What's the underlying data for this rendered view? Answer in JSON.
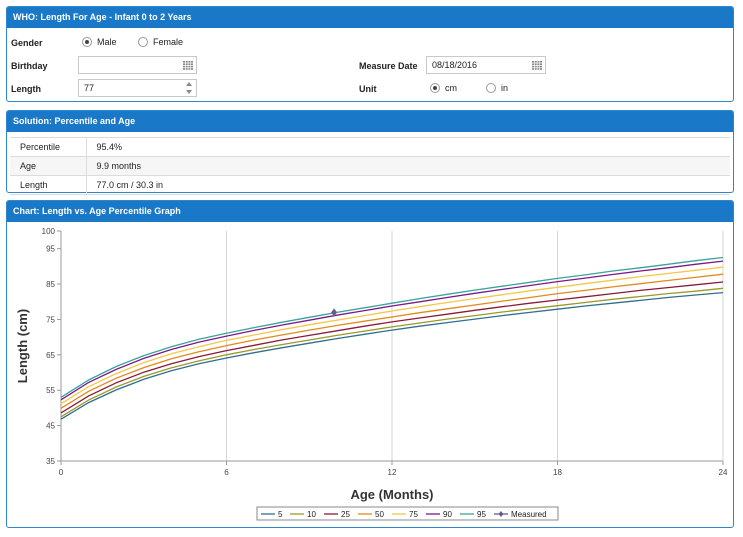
{
  "input_panel": {
    "title": "WHO: Length For Age - Infant 0 to 2 Years",
    "gender_label": "Gender",
    "gender_options": [
      {
        "label": "Male",
        "selected": true
      },
      {
        "label": "Female",
        "selected": false
      }
    ],
    "birthday_label": "Birthday",
    "birthday_value": "",
    "length_label": "Length",
    "length_value": "77",
    "measure_date_label": "Measure Date",
    "measure_date_value": "08/18/2016",
    "unit_label": "Unit",
    "unit_options": [
      {
        "label": "cm",
        "selected": true
      },
      {
        "label": "in",
        "selected": false
      }
    ]
  },
  "solution_panel": {
    "title": "Solution: Percentile and Age",
    "rows": [
      {
        "key": "Percentile",
        "value": "95.4%"
      },
      {
        "key": "Age",
        "value": "9.9 months"
      },
      {
        "key": "Length",
        "value": "77.0 cm / 30.3 in"
      }
    ]
  },
  "chart_panel": {
    "title": "Chart: Length vs. Age Percentile Graph"
  },
  "chart_data": {
    "type": "line",
    "title": "",
    "xlabel": "Age (Months)",
    "ylabel": "Length (cm)",
    "xlim": [
      0,
      24
    ],
    "ylim": [
      35,
      100
    ],
    "xticks": [
      0,
      6,
      12,
      18,
      24
    ],
    "yticks": [
      35,
      45,
      55,
      65,
      75,
      85,
      95,
      100
    ],
    "x_grid": true,
    "y_grid": false,
    "legend_position": "bottom",
    "x": [
      0,
      1,
      2,
      3,
      4,
      5,
      6,
      7,
      8,
      9,
      10,
      11,
      12,
      13,
      14,
      15,
      16,
      17,
      18,
      19,
      20,
      21,
      22,
      23,
      24
    ],
    "series": [
      {
        "name": "5",
        "color": "#2f6f8f",
        "values": [
          46.8,
          51.5,
          55.1,
          58.1,
          60.5,
          62.5,
          64.1,
          65.6,
          67.0,
          68.3,
          69.6,
          70.8,
          72.0,
          73.1,
          74.1,
          75.1,
          76.1,
          77.0,
          77.9,
          78.8,
          79.6,
          80.4,
          81.2,
          81.9,
          82.6
        ]
      },
      {
        "name": "10",
        "color": "#9a9a2a",
        "values": [
          47.5,
          52.2,
          55.9,
          58.9,
          61.3,
          63.3,
          65.0,
          66.5,
          67.9,
          69.2,
          70.5,
          71.7,
          72.9,
          74.0,
          75.1,
          76.1,
          77.1,
          78.0,
          78.9,
          79.8,
          80.7,
          81.5,
          82.3,
          83.0,
          83.8
        ]
      },
      {
        "name": "25",
        "color": "#8b1a3a",
        "values": [
          48.6,
          53.4,
          57.1,
          60.1,
          62.5,
          64.5,
          66.2,
          67.7,
          69.2,
          70.5,
          71.8,
          73.1,
          74.3,
          75.4,
          76.5,
          77.6,
          78.6,
          79.6,
          80.5,
          81.4,
          82.3,
          83.2,
          84.0,
          84.8,
          85.6
        ]
      },
      {
        "name": "50",
        "color": "#e08a1e",
        "values": [
          49.9,
          54.7,
          58.4,
          61.4,
          63.9,
          65.9,
          67.6,
          69.2,
          70.6,
          72.0,
          73.3,
          74.5,
          75.7,
          76.9,
          78.0,
          79.1,
          80.2,
          81.2,
          82.3,
          83.2,
          84.2,
          85.1,
          86.0,
          86.9,
          87.8
        ]
      },
      {
        "name": "75",
        "color": "#f2c84a",
        "values": [
          51.2,
          56.0,
          59.7,
          62.8,
          65.3,
          67.3,
          69.1,
          70.6,
          72.1,
          73.5,
          74.8,
          76.1,
          77.4,
          78.6,
          79.8,
          80.9,
          82.0,
          83.1,
          84.1,
          85.1,
          86.1,
          87.1,
          88.0,
          88.9,
          89.8
        ]
      },
      {
        "name": "90",
        "color": "#7a1a8a",
        "values": [
          52.3,
          57.2,
          60.9,
          64.0,
          66.5,
          68.6,
          70.3,
          71.9,
          73.4,
          74.8,
          76.2,
          77.5,
          78.8,
          80.0,
          81.2,
          82.4,
          83.5,
          84.6,
          85.7,
          86.7,
          87.7,
          88.7,
          89.6,
          90.6,
          91.5
        ]
      },
      {
        "name": "95",
        "color": "#3aa39a",
        "values": [
          53.0,
          57.9,
          61.7,
          64.8,
          67.3,
          69.4,
          71.1,
          72.7,
          74.2,
          75.6,
          77.0,
          78.3,
          79.6,
          80.9,
          82.1,
          83.3,
          84.4,
          85.5,
          86.6,
          87.6,
          88.7,
          89.6,
          90.6,
          91.6,
          92.5
        ]
      }
    ],
    "measured": {
      "name": "Measured",
      "color": "#6a5a8a",
      "x": 9.9,
      "y": 77.0
    }
  }
}
